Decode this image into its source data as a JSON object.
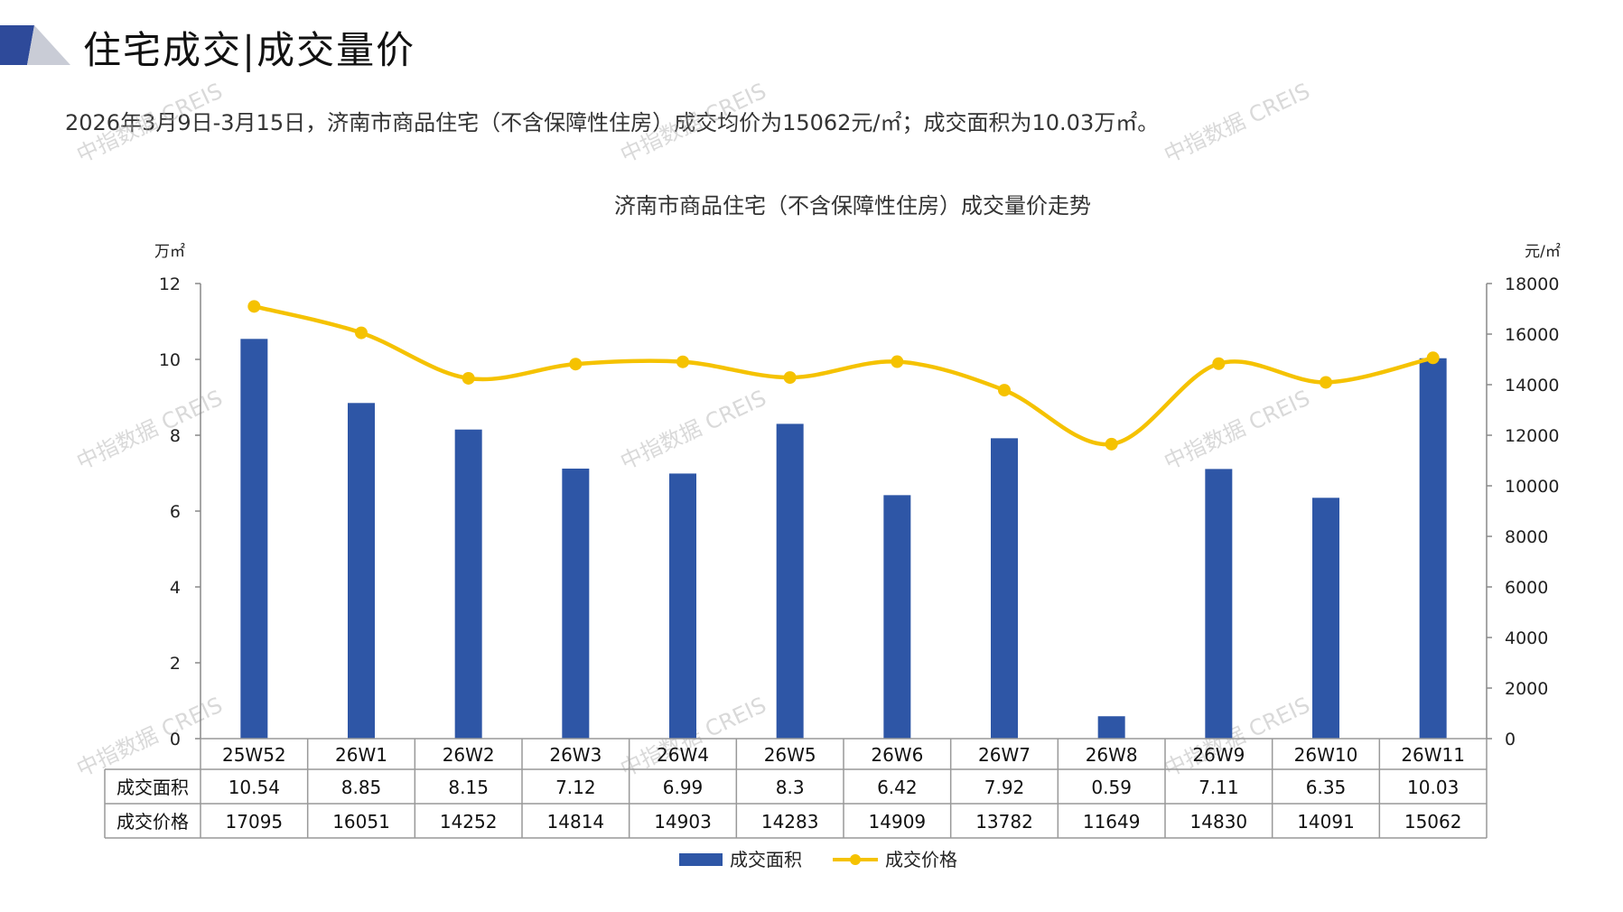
{
  "header": {
    "title": "住宅成交|成交量价"
  },
  "summary": {
    "text": "2026年3月9日-3月15日，济南市商品住宅（不含保障性住房）成交均价为15062元/㎡；成交面积为10.03万㎡。"
  },
  "watermark": {
    "text": "中指数据 CREIS"
  },
  "colors": {
    "bar": "#2E56A6",
    "line": "#F5C200",
    "logo_dark": "#2E4A9A",
    "logo_light": "#C9CCD6"
  },
  "chart_data": {
    "type": "bar",
    "title": "济南市商品住宅（不含保障性住房）成交量价走势",
    "categories": [
      "25W52",
      "26W1",
      "26W2",
      "26W3",
      "26W4",
      "26W5",
      "26W6",
      "26W7",
      "26W8",
      "26W9",
      "26W10",
      "26W11"
    ],
    "left_axis": {
      "unit": "万㎡",
      "range": [
        0,
        12
      ],
      "ticks": [
        "0",
        "2",
        "4",
        "6",
        "8",
        "10",
        "12"
      ]
    },
    "right_axis": {
      "unit": "元/㎡",
      "range": [
        0,
        18000
      ],
      "ticks": [
        "0",
        "2000",
        "4000",
        "6000",
        "8000",
        "10000",
        "12000",
        "14000",
        "16000",
        "18000"
      ]
    },
    "series": [
      {
        "name": "成交面积",
        "type": "bar",
        "axis": "left",
        "values": [
          10.54,
          8.85,
          8.15,
          7.12,
          6.99,
          8.3,
          6.42,
          7.92,
          0.59,
          7.11,
          6.35,
          10.03
        ],
        "labels": [
          "10.54",
          "8.85",
          "8.15",
          "7.12",
          "6.99",
          "8.3",
          "6.42",
          "7.92",
          "0.59",
          "7.11",
          "6.35",
          "10.03"
        ]
      },
      {
        "name": "成交价格",
        "type": "line",
        "axis": "right",
        "values": [
          17095,
          16051,
          14252,
          14814,
          14903,
          14283,
          14909,
          13782,
          11649,
          14830,
          14091,
          15062
        ],
        "labels": [
          "17095",
          "16051",
          "14252",
          "14814",
          "14903",
          "14283",
          "14909",
          "13782",
          "11649",
          "14830",
          "14091",
          "15062"
        ]
      }
    ],
    "grid": false,
    "legend": "bottom-center",
    "data_table": true
  }
}
